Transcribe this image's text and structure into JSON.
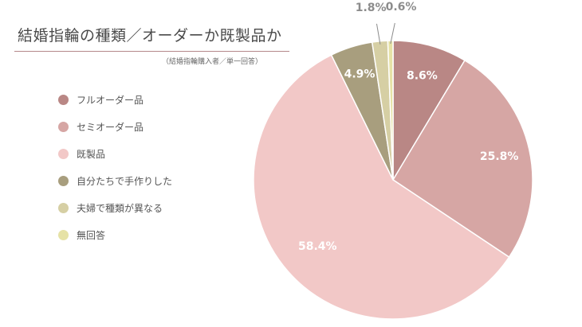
{
  "header": {
    "title": "結婚指輪の種類／オーダーか既製品か",
    "subtitle": "（結婚指輪購入者／単一回答）"
  },
  "chart_data": {
    "type": "pie",
    "title": "結婚指輪の種類／オーダーか既製品か",
    "subtitle": "（結婚指輪購入者／単一回答）",
    "legend_position": "left",
    "slices": [
      {
        "name": "フルオーダー品",
        "value": 8.6,
        "label": "8.6%",
        "color": "#b98785"
      },
      {
        "name": "セミオーダー品",
        "value": 25.8,
        "label": "25.8%",
        "color": "#d6a6a4"
      },
      {
        "name": "既製品",
        "value": 58.4,
        "label": "58.4%",
        "color": "#f2c8c7"
      },
      {
        "name": "自分たちで手作りした",
        "value": 4.9,
        "label": "4.9%",
        "color": "#a89e7e"
      },
      {
        "name": "夫婦で種類が異なる",
        "value": 1.8,
        "label": "1.8%",
        "color": "#d6cfa4"
      },
      {
        "name": "無回答",
        "value": 0.6,
        "label": "0.6%",
        "color": "#e6e2a6"
      }
    ]
  }
}
